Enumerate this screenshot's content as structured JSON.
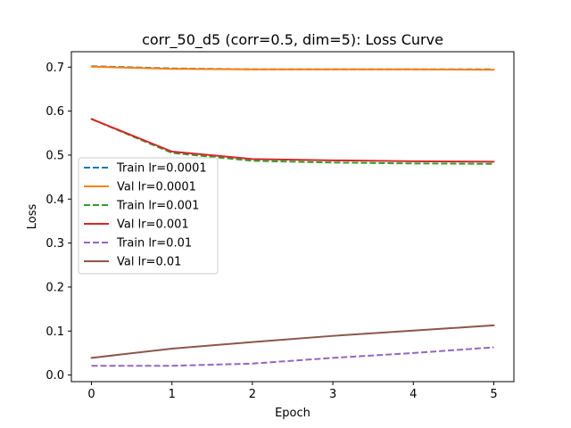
{
  "chart_data": {
    "type": "line",
    "title": "corr_50_d5 (corr=0.5, dim=5): Loss Curve",
    "xlabel": "Epoch",
    "ylabel": "Loss",
    "xlim": [
      -0.25,
      5.25
    ],
    "ylim": [
      -0.015,
      0.735
    ],
    "x_ticks": [
      0,
      1,
      2,
      3,
      4,
      5
    ],
    "y_ticks": [
      0.0,
      0.1,
      0.2,
      0.3,
      0.4,
      0.5,
      0.6,
      0.7
    ],
    "x_tick_labels": [
      "0",
      "1",
      "2",
      "3",
      "4",
      "5"
    ],
    "y_tick_labels": [
      "0.0",
      "0.1",
      "0.2",
      "0.3",
      "0.4",
      "0.5",
      "0.6",
      "0.7"
    ],
    "grid": false,
    "legend_position": "center-left",
    "x": [
      0,
      1,
      2,
      3,
      4,
      5
    ],
    "series": [
      {
        "name": "Train lr=0.0001",
        "color": "#1f77b4",
        "dash": "dashed",
        "values": [
          0.702,
          0.697,
          0.695,
          0.695,
          0.695,
          0.695
        ]
      },
      {
        "name": "Val lr=0.0001",
        "color": "#ff7f0e",
        "dash": "solid",
        "values": [
          0.701,
          0.696,
          0.695,
          0.695,
          0.695,
          0.694
        ]
      },
      {
        "name": "Train lr=0.001",
        "color": "#2ca02c",
        "dash": "dashed",
        "values": [
          0.582,
          0.505,
          0.487,
          0.483,
          0.481,
          0.48
        ]
      },
      {
        "name": "Val lr=0.001",
        "color": "#d62728",
        "dash": "solid",
        "values": [
          0.582,
          0.508,
          0.491,
          0.488,
          0.486,
          0.485
        ]
      },
      {
        "name": "Train lr=0.01",
        "color": "#9467bd",
        "dash": "dashed",
        "values": [
          0.021,
          0.021,
          0.026,
          0.039,
          0.05,
          0.063
        ]
      },
      {
        "name": "Val lr=0.01",
        "color": "#8c564b",
        "dash": "solid",
        "values": [
          0.039,
          0.06,
          0.075,
          0.089,
          0.101,
          0.113
        ]
      }
    ]
  }
}
